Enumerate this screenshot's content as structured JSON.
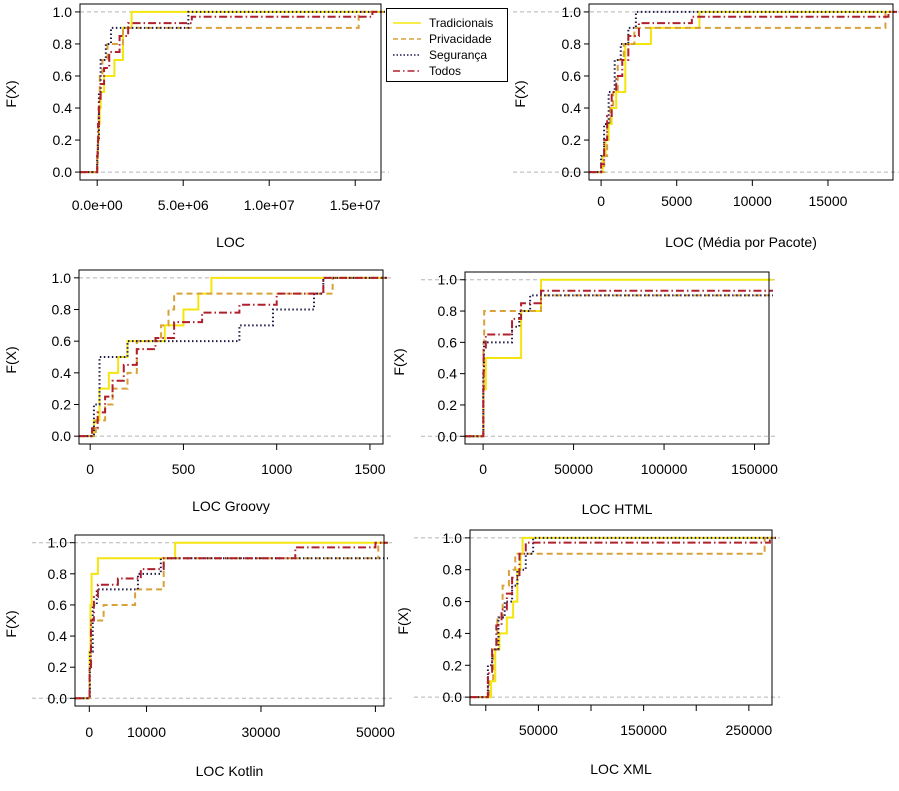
{
  "chart_data": [
    {
      "type": "line",
      "xlabel": "LOC",
      "ylabel": "F(X)",
      "xlim": [
        -1000000,
        16500000
      ],
      "ylim": [
        0,
        1
      ],
      "xticks": [
        0,
        5000000,
        10000000,
        15000000
      ],
      "xtick_labels": [
        "0.0e+00",
        "5.0e+06",
        "1.0e+07",
        "1.5e+07"
      ],
      "yticks": [
        0,
        0.2,
        0.4,
        0.6,
        0.8,
        1.0
      ],
      "ytick_labels": [
        "0.0",
        "0.2",
        "0.4",
        "0.6",
        "0.8",
        "1.0"
      ],
      "series": [
        {
          "name": "Tradicionais",
          "x": [
            0,
            50000,
            100000,
            150000,
            200000,
            400000,
            1000000,
            1500000,
            2000000
          ],
          "y": [
            0.1,
            0.2,
            0.3,
            0.4,
            0.5,
            0.6,
            0.7,
            0.9,
            1.0
          ]
        },
        {
          "name": "Privacidade",
          "x": [
            0,
            30000,
            80000,
            150000,
            300000,
            600000,
            1500000,
            15200000
          ],
          "y": [
            0.1,
            0.2,
            0.4,
            0.6,
            0.7,
            0.8,
            0.9,
            1.0
          ]
        },
        {
          "name": "Segurança",
          "x": [
            0,
            40000,
            100000,
            200000,
            500000,
            800000,
            5300000
          ],
          "y": [
            0.1,
            0.2,
            0.5,
            0.7,
            0.8,
            0.9,
            1.0
          ]
        },
        {
          "name": "Todos",
          "x": [
            0,
            20000,
            50000,
            100000,
            200000,
            400000,
            700000,
            1300000,
            1800000,
            5500000,
            16000000
          ],
          "y": [
            0.05,
            0.15,
            0.3,
            0.45,
            0.55,
            0.65,
            0.75,
            0.85,
            0.93,
            0.97,
            1.0
          ]
        }
      ]
    },
    {
      "type": "line",
      "xlabel": "LOC (Média por Pacote)",
      "ylabel": "F(X)",
      "xlim": [
        -800,
        19300
      ],
      "ylim": [
        0,
        1
      ],
      "xticks": [
        0,
        5000,
        10000,
        15000
      ],
      "xtick_labels": [
        "0",
        "5000",
        "10000",
        "15000"
      ],
      "yticks": [
        0,
        0.2,
        0.4,
        0.6,
        0.8,
        1.0
      ],
      "ytick_labels": [
        "0.0",
        "0.2",
        "0.4",
        "0.6",
        "0.8",
        "1.0"
      ],
      "series": [
        {
          "name": "Tradicionais",
          "x": [
            100,
            300,
            500,
            700,
            1000,
            1600,
            3300,
            6500
          ],
          "y": [
            0.1,
            0.2,
            0.3,
            0.4,
            0.5,
            0.8,
            0.9,
            1.0
          ]
        },
        {
          "name": "Privacidade",
          "x": [
            200,
            400,
            600,
            800,
            1100,
            1500,
            2200,
            18800
          ],
          "y": [
            0.1,
            0.3,
            0.4,
            0.5,
            0.7,
            0.8,
            0.9,
            1.0
          ]
        },
        {
          "name": "Segurança",
          "x": [
            0,
            200,
            500,
            900,
            1300,
            1800,
            2300
          ],
          "y": [
            0.1,
            0.3,
            0.5,
            0.7,
            0.8,
            0.9,
            1.0
          ]
        },
        {
          "name": "Todos",
          "x": [
            0,
            200,
            400,
            700,
            1000,
            1400,
            1800,
            2500,
            6000,
            19000
          ],
          "y": [
            0.05,
            0.2,
            0.35,
            0.5,
            0.6,
            0.7,
            0.85,
            0.93,
            0.97,
            1.0
          ]
        }
      ]
    },
    {
      "type": "line",
      "xlabel": "LOC Groovy",
      "ylabel": "F(X)",
      "xlim": [
        -60,
        1570
      ],
      "ylim": [
        0,
        1
      ],
      "xticks": [
        0,
        500,
        1000,
        1500
      ],
      "xtick_labels": [
        "0",
        "500",
        "1000",
        "1500"
      ],
      "yticks": [
        0,
        0.2,
        0.4,
        0.6,
        0.8,
        1.0
      ],
      "ytick_labels": [
        "0.0",
        "0.2",
        "0.4",
        "0.6",
        "0.8",
        "1.0"
      ],
      "series": [
        {
          "name": "Tradicionais",
          "x": [
            20,
            50,
            100,
            150,
            200,
            400,
            500,
            580,
            650,
            1250
          ],
          "y": [
            0.1,
            0.3,
            0.4,
            0.5,
            0.6,
            0.7,
            0.8,
            0.9,
            1.0,
            1.0
          ]
        },
        {
          "name": "Privacidade",
          "x": [
            30,
            80,
            120,
            200,
            250,
            380,
            420,
            450,
            700,
            1300
          ],
          "y": [
            0.1,
            0.2,
            0.3,
            0.4,
            0.6,
            0.7,
            0.8,
            0.9,
            0.9,
            1.0
          ]
        },
        {
          "name": "Segurança",
          "x": [
            20,
            50,
            200,
            750,
            800,
            980,
            1200,
            1250
          ],
          "y": [
            0.2,
            0.5,
            0.6,
            0.6,
            0.7,
            0.8,
            0.9,
            1.0
          ]
        },
        {
          "name": "Todos",
          "x": [
            10,
            40,
            80,
            120,
            180,
            250,
            350,
            450,
            600,
            800,
            1000,
            1250,
            1550
          ],
          "y": [
            0.05,
            0.15,
            0.25,
            0.35,
            0.45,
            0.55,
            0.62,
            0.72,
            0.78,
            0.83,
            0.9,
            1.0,
            1.0
          ]
        }
      ]
    },
    {
      "type": "line",
      "xlabel": "LOC HTML",
      "ylabel": "F(X)",
      "xlim": [
        -10000,
        158000
      ],
      "ylim": [
        0,
        1
      ],
      "xticks": [
        0,
        50000,
        100000,
        150000
      ],
      "xtick_labels": [
        "0",
        "50000",
        "100000",
        "150000"
      ],
      "yticks": [
        0,
        0.2,
        0.4,
        0.6,
        0.8,
        1.0
      ],
      "ytick_labels": [
        "0.0",
        "0.2",
        "0.4",
        "0.6",
        "0.8",
        "1.0"
      ],
      "series": [
        {
          "name": "Tradicionais",
          "x": [
            200,
            1500,
            21000,
            32000
          ],
          "y": [
            0.3,
            0.5,
            0.8,
            1.0
          ]
        },
        {
          "name": "Privacidade",
          "x": [
            200,
            600,
            21000,
            32000
          ],
          "y": [
            0.6,
            0.8,
            0.8,
            0.9
          ]
        },
        {
          "name": "Segurança",
          "x": [
            100,
            500,
            16000,
            20000,
            26000,
            32000
          ],
          "y": [
            0.4,
            0.6,
            0.7,
            0.8,
            0.9,
            0.9
          ]
        },
        {
          "name": "Todos",
          "x": [
            100,
            300,
            1500,
            16000,
            21000,
            32000
          ],
          "y": [
            0.3,
            0.55,
            0.65,
            0.75,
            0.85,
            0.93
          ]
        }
      ]
    },
    {
      "type": "line",
      "xlabel": "LOC Kotlin",
      "ylabel": "F(X)",
      "xlim": [
        -2500,
        51500
      ],
      "ylim": [
        0,
        1
      ],
      "xticks": [
        0,
        10000,
        30000,
        50000
      ],
      "xtick_labels": [
        "0",
        "10000",
        "30000",
        "50000"
      ],
      "yticks": [
        0,
        0.2,
        0.4,
        0.6,
        0.8,
        1.0
      ],
      "ytick_labels": [
        "0.0",
        "0.2",
        "0.4",
        "0.6",
        "0.8",
        "1.0"
      ],
      "series": [
        {
          "name": "Tradicionais",
          "x": [
            50,
            200,
            400,
            1500,
            15000
          ],
          "y": [
            0.3,
            0.6,
            0.8,
            0.9,
            1.0
          ]
        },
        {
          "name": "Privacidade",
          "x": [
            50,
            300,
            2500,
            4500,
            8000,
            13000,
            15000,
            50500
          ],
          "y": [
            0.2,
            0.5,
            0.6,
            0.6,
            0.7,
            0.9,
            0.9,
            1.0
          ]
        },
        {
          "name": "Segurança",
          "x": [
            100,
            600,
            1300,
            8500,
            12500,
            50000
          ],
          "y": [
            0.3,
            0.6,
            0.7,
            0.8,
            0.9,
            0.9
          ]
        },
        {
          "name": "Todos",
          "x": [
            50,
            300,
            800,
            1500,
            5000,
            9000,
            13000,
            36000,
            50000
          ],
          "y": [
            0.2,
            0.5,
            0.65,
            0.73,
            0.77,
            0.83,
            0.9,
            0.97,
            1.0
          ]
        }
      ]
    },
    {
      "type": "line",
      "xlabel": "LOC XML",
      "ylabel": "F(X)",
      "xlim": [
        -15000,
        272000
      ],
      "ylim": [
        0,
        1
      ],
      "xticks": [
        0,
        50000,
        100000,
        150000,
        200000,
        250000
      ],
      "xtick_labels": [
        "",
        "50000",
        "",
        "150000",
        "",
        "250000"
      ],
      "yticks": [
        0,
        0.2,
        0.4,
        0.6,
        0.8,
        1.0
      ],
      "ytick_labels": [
        "0.0",
        "0.2",
        "0.4",
        "0.6",
        "0.8",
        "1.0"
      ],
      "series": [
        {
          "name": "Tradicionais",
          "x": [
            5000,
            9000,
            13000,
            20000,
            26000,
            30000,
            33000,
            35000
          ],
          "y": [
            0.1,
            0.3,
            0.4,
            0.5,
            0.6,
            0.8,
            0.9,
            1.0
          ]
        },
        {
          "name": "Privacidade",
          "x": [
            3000,
            7000,
            11000,
            16000,
            22000,
            28000,
            33000,
            265000
          ],
          "y": [
            0.1,
            0.3,
            0.5,
            0.7,
            0.8,
            0.9,
            0.9,
            1.0
          ]
        },
        {
          "name": "Segurança",
          "x": [
            2000,
            6000,
            12000,
            18000,
            25000,
            30000,
            38000,
            45000
          ],
          "y": [
            0.2,
            0.3,
            0.5,
            0.6,
            0.7,
            0.8,
            0.9,
            1.0
          ]
        },
        {
          "name": "Todos",
          "x": [
            2000,
            6000,
            10000,
            15000,
            20000,
            25000,
            32000,
            38000,
            270000
          ],
          "y": [
            0.15,
            0.3,
            0.45,
            0.55,
            0.65,
            0.75,
            0.9,
            0.97,
            1.0
          ]
        }
      ]
    }
  ],
  "legend": {
    "items": [
      {
        "label": "Tradicionais",
        "color": "#f5e50f",
        "dash": "solid"
      },
      {
        "label": "Privacidade",
        "color": "#d9a13a",
        "dash": "dashed"
      },
      {
        "label": "Segurança",
        "color": "#1f1a4a",
        "dash": "dotted"
      },
      {
        "label": "Todos",
        "color": "#b0202c",
        "dash": "dotdash"
      }
    ]
  }
}
